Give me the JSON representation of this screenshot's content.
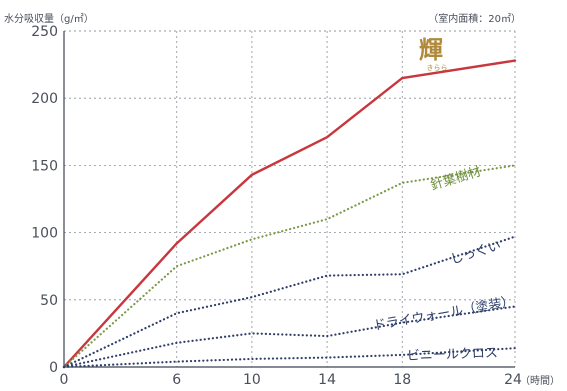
{
  "chart_data": {
    "type": "line",
    "ylabel": "水分吸収量（g/㎡）",
    "annotation": "（室内面積：20㎡）",
    "x_unit": "（時間）",
    "x": [
      0,
      6,
      10,
      14,
      18,
      24
    ],
    "xlim": [
      0,
      24
    ],
    "ylim": [
      0,
      250
    ],
    "y_ticks": [
      0,
      50,
      100,
      150,
      200,
      250
    ],
    "grid": true,
    "series": [
      {
        "name": "輝",
        "name_sub": "きらら",
        "color": "#c8373d",
        "style": "solid",
        "values": [
          0,
          92,
          143,
          171,
          215,
          228
        ]
      },
      {
        "name": "針葉樹材",
        "color": "#7b9a4a",
        "style": "dotted",
        "values": [
          0,
          75,
          95,
          110,
          137,
          150
        ]
      },
      {
        "name": "しっくい",
        "color": "#2f3f6a",
        "style": "dotted",
        "values": [
          0,
          40,
          52,
          68,
          69,
          97
        ]
      },
      {
        "name": "ドライウォール（塗装）",
        "color": "#2f3f6a",
        "style": "dotted",
        "values": [
          0,
          18,
          25,
          23,
          33,
          45
        ]
      },
      {
        "name": "ビニールクロス",
        "color": "#2f3f6a",
        "style": "dotted",
        "values": [
          0,
          4,
          6,
          7,
          9,
          14
        ]
      }
    ]
  }
}
